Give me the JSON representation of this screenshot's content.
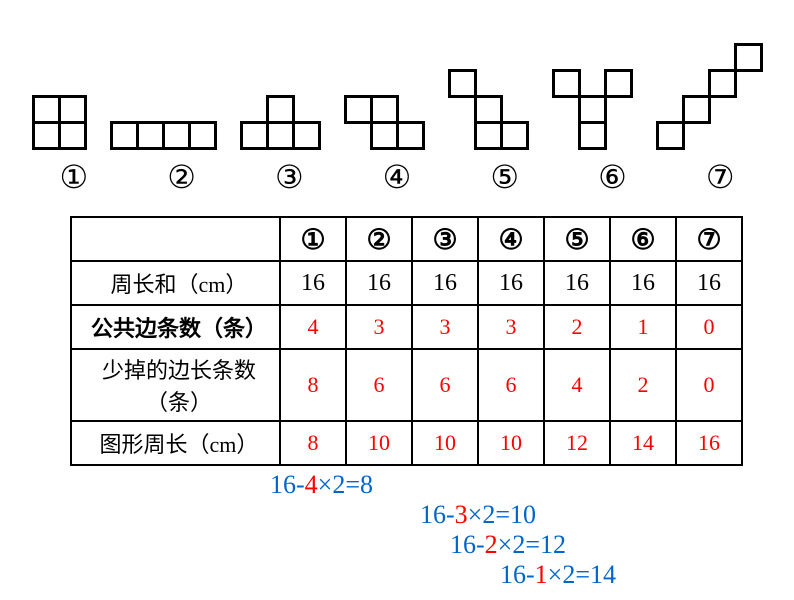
{
  "shapes": {
    "cell_size": 26,
    "stroke": "#000000",
    "stroke_width": 3,
    "circled_labels": [
      "①",
      "②",
      "③",
      "④",
      "⑤",
      "⑥",
      "⑦"
    ],
    "items": [
      {
        "cells": [
          [
            0,
            0
          ],
          [
            1,
            0
          ],
          [
            0,
            1
          ],
          [
            1,
            1
          ]
        ],
        "class": "s1"
      },
      {
        "cells": [
          [
            0,
            0
          ],
          [
            1,
            0
          ],
          [
            2,
            0
          ],
          [
            3,
            0
          ]
        ],
        "class": "s2"
      },
      {
        "cells": [
          [
            0,
            1
          ],
          [
            1,
            1
          ],
          [
            2,
            1
          ],
          [
            1,
            0
          ]
        ],
        "class": "s3"
      },
      {
        "cells": [
          [
            0,
            0
          ],
          [
            1,
            0
          ],
          [
            1,
            1
          ],
          [
            2,
            1
          ]
        ],
        "class": "s4"
      },
      {
        "cells": [
          [
            0,
            0
          ],
          [
            1,
            1
          ],
          [
            2,
            2
          ],
          [
            1,
            2
          ]
        ],
        "class": "s5"
      },
      {
        "cells": [
          [
            0,
            0
          ],
          [
            2,
            0
          ],
          [
            1,
            1
          ],
          [
            1,
            2
          ]
        ],
        "class": "s6"
      },
      {
        "cells": [
          [
            0,
            3
          ],
          [
            1,
            2
          ],
          [
            2,
            1
          ],
          [
            3,
            0
          ]
        ],
        "class": "s7"
      }
    ]
  },
  "label_font_size": 32,
  "table": {
    "col_headers": [
      "①",
      "②",
      "③",
      "④",
      "⑤",
      "⑥",
      "⑦"
    ],
    "rows": [
      {
        "label": "周长和（cm）",
        "label_bold": false,
        "value_color": "black",
        "values": [
          "16",
          "16",
          "16",
          "16",
          "16",
          "16",
          "16"
        ]
      },
      {
        "label": "公共边条数（条）",
        "label_bold": true,
        "value_color": "red",
        "values": [
          "4",
          "3",
          "3",
          "3",
          "2",
          "1",
          "0"
        ]
      },
      {
        "label": "少掉的边长条数\n（条）",
        "label_bold": false,
        "value_color": "red",
        "tall": true,
        "values": [
          "8",
          "6",
          "6",
          "6",
          "4",
          "2",
          "0"
        ]
      },
      {
        "label": "图形周长（cm）",
        "label_bold": false,
        "value_color": "red",
        "values": [
          "8",
          "10",
          "10",
          "10",
          "12",
          "14",
          "16"
        ]
      }
    ]
  },
  "equations": [
    {
      "indent": 0,
      "pre": "16-",
      "mid": "4",
      "post": "×2=8"
    },
    {
      "indent": 150,
      "pre": "16-",
      "mid": "3",
      "post": "×2=10"
    },
    {
      "indent": 180,
      "pre": "16-",
      "mid": "2",
      "post": "×2=12"
    },
    {
      "indent": 230,
      "pre": "16-",
      "mid": "1",
      "post": "×2=14"
    }
  ],
  "colors": {
    "blue": "#0066cc",
    "red": "#ff0000",
    "black": "#000000"
  }
}
